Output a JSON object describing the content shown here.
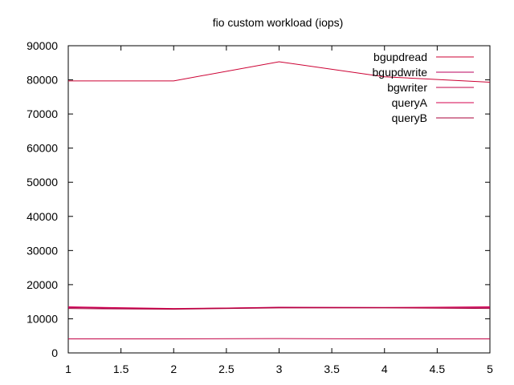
{
  "chart_data": {
    "type": "line",
    "title": "fio custom workload (iops)",
    "xlabel": "",
    "ylabel": "",
    "x": [
      1,
      2,
      3,
      4,
      5
    ],
    "xlim": [
      1,
      5
    ],
    "ylim": [
      0,
      90000
    ],
    "xticks": [
      "1",
      "1.5",
      "2",
      "2.5",
      "3",
      "3.5",
      "4",
      "4.5",
      "5"
    ],
    "yticks": [
      "0",
      "10000",
      "20000",
      "30000",
      "40000",
      "50000",
      "60000",
      "70000",
      "80000",
      "90000"
    ],
    "grid": false,
    "legend_position": "top-right",
    "series": [
      {
        "name": "bgupdread",
        "color": "#cc0033",
        "values": [
          79700,
          79700,
          85300,
          80900,
          79300
        ]
      },
      {
        "name": "bgupdwrite",
        "color": "#b8005c",
        "values": [
          13300,
          12900,
          13400,
          13300,
          13300
        ]
      },
      {
        "name": "bgwriter",
        "color": "#c20044",
        "values": [
          4100,
          4100,
          4200,
          4100,
          4100
        ]
      },
      {
        "name": "queryA",
        "color": "#d4004d",
        "values": [
          13500,
          13000,
          13300,
          13300,
          13500
        ]
      },
      {
        "name": "queryB",
        "color": "#a80038",
        "values": [
          13000,
          12800,
          13200,
          13200,
          13000
        ]
      }
    ]
  }
}
